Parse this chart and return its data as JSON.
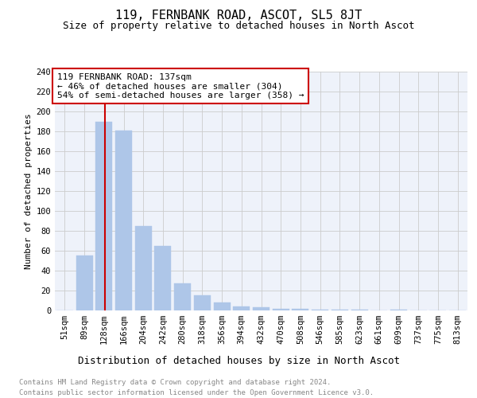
{
  "title": "119, FERNBANK ROAD, ASCOT, SL5 8JT",
  "subtitle": "Size of property relative to detached houses in North Ascot",
  "xlabel": "Distribution of detached houses by size in North Ascot",
  "ylabel": "Number of detached properties",
  "footer_line1": "Contains HM Land Registry data © Crown copyright and database right 2024.",
  "footer_line2": "Contains public sector information licensed under the Open Government Licence v3.0.",
  "categories": [
    "51sqm",
    "89sqm",
    "128sqm",
    "166sqm",
    "204sqm",
    "242sqm",
    "280sqm",
    "318sqm",
    "356sqm",
    "394sqm",
    "432sqm",
    "470sqm",
    "508sqm",
    "546sqm",
    "585sqm",
    "623sqm",
    "661sqm",
    "699sqm",
    "737sqm",
    "775sqm",
    "813sqm"
  ],
  "values": [
    0,
    55,
    190,
    181,
    85,
    65,
    27,
    15,
    8,
    4,
    3,
    2,
    2,
    1,
    1,
    1,
    0,
    1,
    0,
    0,
    0
  ],
  "bar_color": "#aec6e8",
  "bar_edge_color": "#aec6e8",
  "grid_color": "#cccccc",
  "background_color": "#ffffff",
  "plot_background": "#eef2fa",
  "vline_color": "#cc0000",
  "annotation_text": "119 FERNBANK ROAD: 137sqm\n← 46% of detached houses are smaller (304)\n54% of semi-detached houses are larger (358) →",
  "annotation_box_color": "#ffffff",
  "annotation_box_edge": "#cc0000",
  "ylim": [
    0,
    240
  ],
  "yticks": [
    0,
    20,
    40,
    60,
    80,
    100,
    120,
    140,
    160,
    180,
    200,
    220,
    240
  ],
  "title_fontsize": 11,
  "subtitle_fontsize": 9,
  "xlabel_fontsize": 9,
  "ylabel_fontsize": 8,
  "tick_fontsize": 7.5,
  "annotation_fontsize": 8,
  "footer_fontsize": 6.5
}
